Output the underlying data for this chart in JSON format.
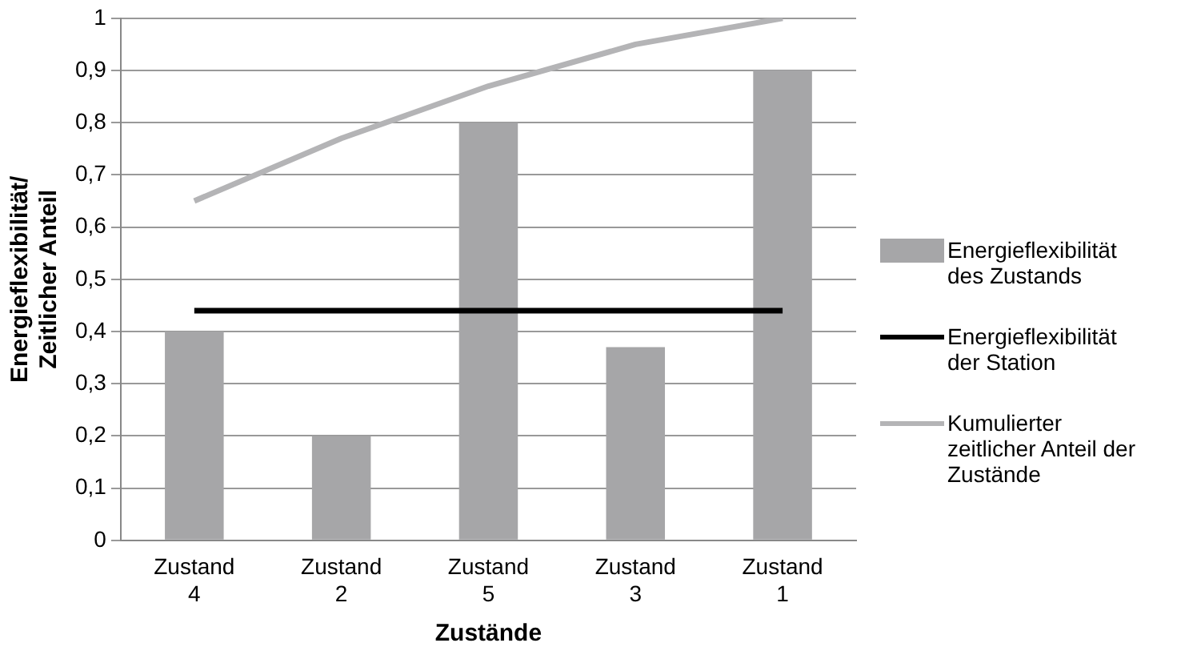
{
  "chart_data": {
    "type": "bar",
    "xlabel": "Zustände",
    "ylabel": "Energieflexibilität/ Zeitlicher Anteil",
    "categories": [
      "Zustand 4",
      "Zustand 2",
      "Zustand 5",
      "Zustand 3",
      "Zustand 1"
    ],
    "series": [
      {
        "name": "Energieflexibilität des Zustands",
        "color": "#a6a6a8",
        "values": [
          0.4,
          0.2,
          0.8,
          0.37,
          0.9
        ]
      },
      {
        "name": "Energieflexibilität der Station",
        "type": "line",
        "color": "#000000",
        "values": [
          0.44,
          0.44,
          0.44,
          0.44,
          0.44
        ]
      },
      {
        "name": "Kumulierter zeitlicher Anteil der Zustände",
        "type": "line",
        "color": "#b4b4b6",
        "values": [
          0.65,
          0.77,
          0.87,
          0.95,
          1.0
        ]
      }
    ],
    "ylim": [
      0,
      1
    ],
    "yticks": [
      0,
      {
        "value": 0.1,
        "label": "0,1"
      },
      {
        "value": 0.2,
        "label": "0,2"
      },
      {
        "value": 0.3,
        "label": "0,3"
      },
      {
        "value": 0.4,
        "label": "0,4"
      },
      {
        "value": 0.5,
        "label": "0,5"
      },
      {
        "value": 0.6,
        "label": "0,6"
      },
      {
        "value": 0.7,
        "label": "0,7"
      },
      {
        "value": 0.8,
        "label": "0,8"
      },
      {
        "value": 0.9,
        "label": "0,9"
      },
      1
    ],
    "grid": "y",
    "legend": "right",
    "marker": "none",
    "line_style": "solid"
  }
}
